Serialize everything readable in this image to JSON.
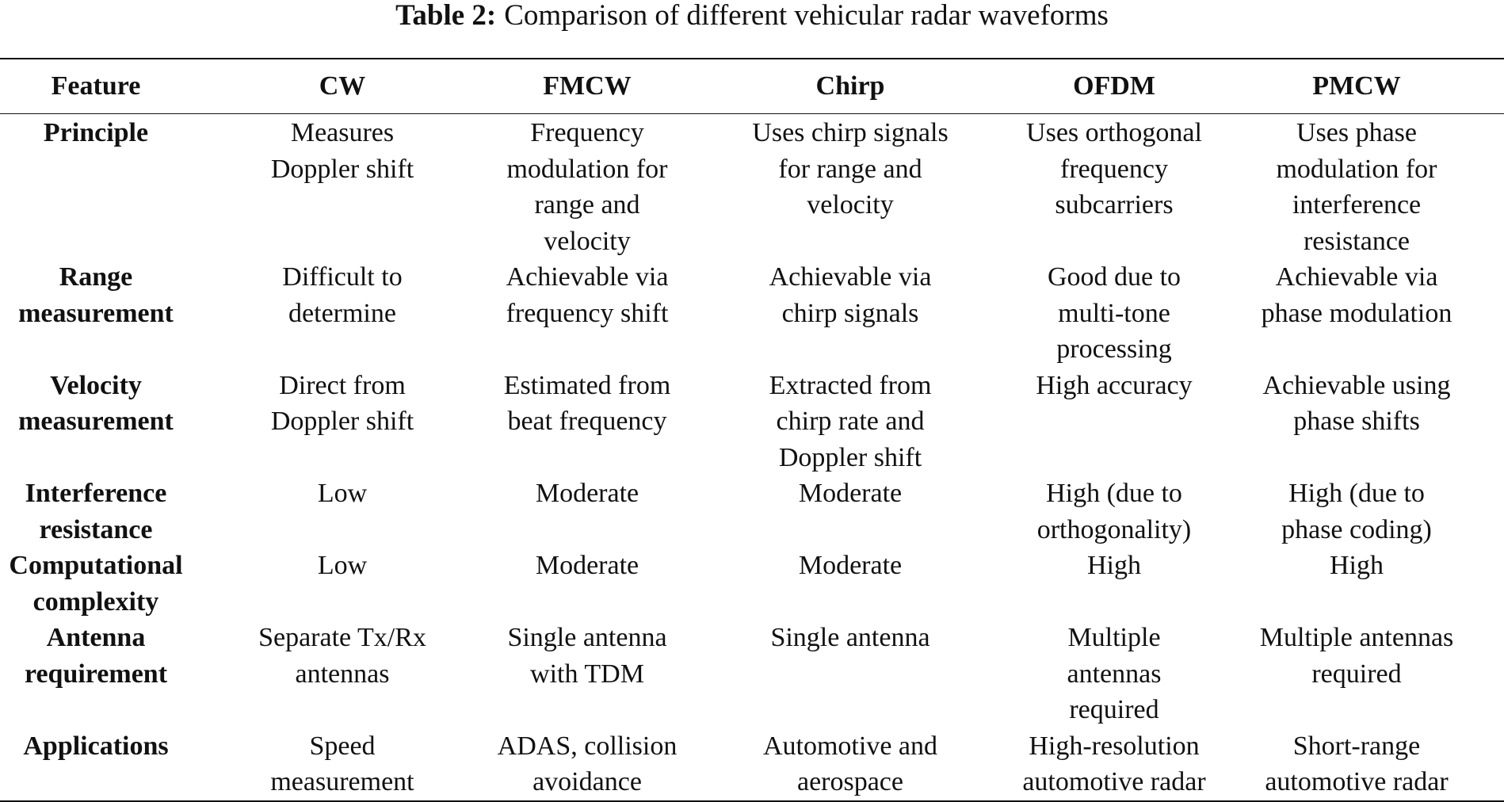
{
  "caption": {
    "label": "Table 2:",
    "text": "Comparison of different vehicular radar waveforms"
  },
  "table": {
    "headers": [
      "Feature",
      "CW",
      "FMCW",
      "Chirp",
      "OFDM",
      "PMCW"
    ],
    "rows": [
      {
        "feature": [
          "Principle"
        ],
        "cells": [
          [
            "Measures",
            "Doppler shift"
          ],
          [
            "Frequency",
            "modulation for",
            "range and velocity"
          ],
          [
            "Uses chirp signals",
            "for range and",
            "velocity"
          ],
          [
            "Uses orthogonal",
            "frequency",
            "subcarriers"
          ],
          [
            "Uses phase",
            "modulation for",
            "interference",
            "resistance"
          ]
        ]
      },
      {
        "feature": [
          "Range",
          "measurement"
        ],
        "cells": [
          [
            "Difficult to",
            "determine"
          ],
          [
            "Achievable via",
            "frequency shift"
          ],
          [
            "Achievable via",
            "chirp signals"
          ],
          [
            "Good due to",
            "multi-tone",
            "processing"
          ],
          [
            "Achievable via",
            "phase modulation"
          ]
        ]
      },
      {
        "feature": [
          "Velocity",
          "measurement"
        ],
        "cells": [
          [
            "Direct from",
            "Doppler shift"
          ],
          [
            "Estimated from",
            "beat frequency"
          ],
          [
            "Extracted from",
            "chirp rate and",
            "Doppler shift"
          ],
          [
            "High accuracy"
          ],
          [
            "Achievable using",
            "phase shifts"
          ]
        ]
      },
      {
        "feature": [
          "Interference",
          "resistance"
        ],
        "cells": [
          [
            "Low"
          ],
          [
            "Moderate"
          ],
          [
            "Moderate"
          ],
          [
            "High (due to",
            "orthogonality)"
          ],
          [
            "High (due to",
            "phase coding)"
          ]
        ]
      },
      {
        "feature": [
          "Computational",
          "complexity"
        ],
        "cells": [
          [
            "Low"
          ],
          [
            "Moderate"
          ],
          [
            "Moderate"
          ],
          [
            "High"
          ],
          [
            "High"
          ]
        ]
      },
      {
        "feature": [
          "Antenna",
          "requirement"
        ],
        "cells": [
          [
            "Separate Tx/Rx",
            "antennas"
          ],
          [
            "Single antenna",
            "with TDM"
          ],
          [
            "Single antenna"
          ],
          [
            "Multiple antennas",
            "required"
          ],
          [
            "Multiple antennas",
            "required"
          ]
        ]
      },
      {
        "feature": [
          "Applications"
        ],
        "cells": [
          [
            "Speed",
            "measurement"
          ],
          [
            "ADAS, collision",
            "avoidance"
          ],
          [
            "Automotive and",
            "aerospace"
          ],
          [
            "High-resolution",
            "automotive radar"
          ],
          [
            "Short-range",
            "automotive radar"
          ]
        ]
      }
    ]
  }
}
